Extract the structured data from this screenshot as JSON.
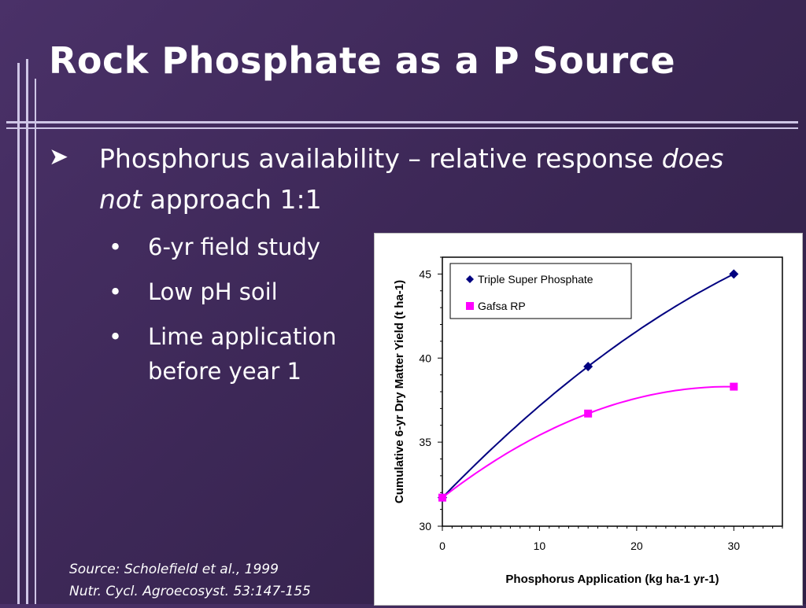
{
  "slide": {
    "title": "Rock Phosphate as a P Source",
    "bullet": {
      "text_a": "Phosphorus availability – relative response ",
      "text_italic_a": "does",
      "text_italic_b": "not",
      "text_b": " approach 1:1"
    },
    "sub_bullets": [
      "6-yr field study",
      "Low pH soil",
      "Lime application before year 1"
    ],
    "source_lines": [
      "Source: Scholefield et al., 1999",
      "Nutr. Cycl. Agroecosyst. 53:147-155"
    ]
  },
  "chart_data": {
    "type": "line",
    "xlabel": "Phosphorus Application (kg ha-1 yr-1)",
    "ylabel": "Cumulative 6-yr Dry Matter Yield (t ha-1)",
    "xlim": [
      0,
      35
    ],
    "ylim": [
      30,
      46
    ],
    "x_ticks": [
      0,
      10,
      20,
      30
    ],
    "y_ticks": [
      30,
      35,
      40,
      45
    ],
    "legend_position": "top-left",
    "grid": false,
    "series": [
      {
        "name": "Triple Super Phosphate",
        "color": "#000080",
        "marker": "diamond",
        "x": [
          0,
          15,
          30
        ],
        "y": [
          31.7,
          39.5,
          45.0
        ]
      },
      {
        "name": "Gafsa RP",
        "color": "#ff00ff",
        "marker": "square",
        "x": [
          0,
          15,
          30
        ],
        "y": [
          31.7,
          36.7,
          38.3
        ]
      }
    ]
  }
}
